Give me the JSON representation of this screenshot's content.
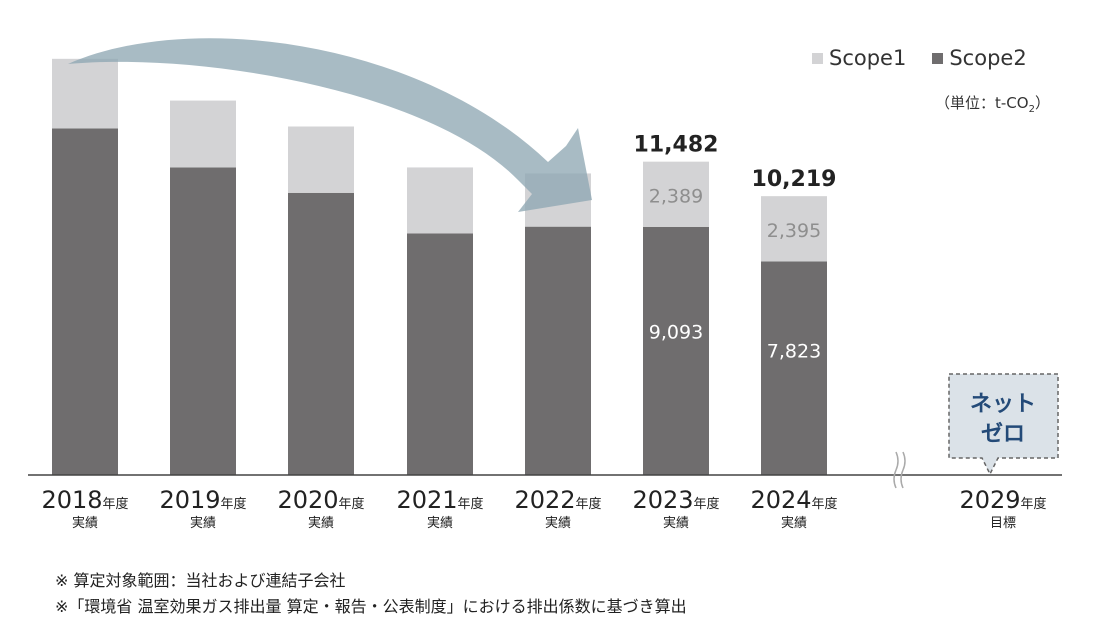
{
  "legend": {
    "scope1": "Scope1",
    "scope2": "Scope2",
    "scope1_color": "#d3d3d5",
    "scope2_color": "#6f6d6e"
  },
  "unit": {
    "prefix": "（単位：t-CO",
    "sub": "2",
    "suffix": "）"
  },
  "chart_data": {
    "type": "bar",
    "stacked": true,
    "categories": [
      {
        "year": "2018",
        "suffix": "年度",
        "sub": "実績"
      },
      {
        "year": "2019",
        "suffix": "年度",
        "sub": "実績"
      },
      {
        "year": "2020",
        "suffix": "年度",
        "sub": "実績"
      },
      {
        "year": "2021",
        "suffix": "年度",
        "sub": "実績"
      },
      {
        "year": "2022",
        "suffix": "年度",
        "sub": "実績"
      },
      {
        "year": "2023",
        "suffix": "年度",
        "sub": "実績"
      },
      {
        "year": "2024",
        "suffix": "年度",
        "sub": "実績"
      },
      {
        "year": "2029",
        "suffix": "年度",
        "sub": "目標"
      }
    ],
    "series": [
      {
        "name": "Scope2",
        "values": [
          12700,
          11270,
          10340,
          8850,
          9100,
          9093,
          7823,
          null
        ],
        "color": "#6f6d6e"
      },
      {
        "name": "Scope1",
        "values": [
          2550,
          2450,
          2430,
          2420,
          1950,
          2389,
          2395,
          null
        ],
        "color": "#d3d3d5"
      }
    ],
    "data_labels": {
      "totals": [
        "",
        "",
        "",
        "",
        "",
        "11,482",
        "10,219",
        ""
      ],
      "scope1": [
        "",
        "",
        "",
        "",
        "",
        "2,389",
        "2,395",
        ""
      ],
      "scope2": [
        "",
        "",
        "",
        "",
        "",
        "9,093",
        "7,823",
        ""
      ]
    },
    "target": {
      "label_line1": "ネット",
      "label_line2": "ゼロ"
    },
    "axis_break": "≈",
    "ylim": [
      0,
      15500
    ],
    "grid": false,
    "legend_position": "top-right"
  },
  "notes": [
    "※ 算定対象範囲：当社および連結子会社",
    "※「環境省 温室効果ガス排出量 算定・報告・公表制度」における排出係数に基づき算出"
  ]
}
